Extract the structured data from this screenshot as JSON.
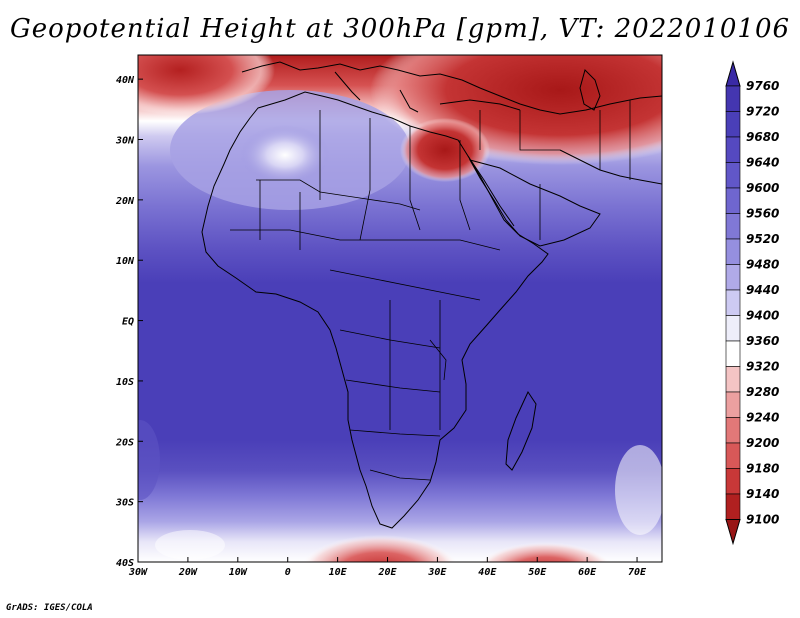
{
  "title": "Geopotential Height at 300hPa [gpm], VT: 2022010106",
  "credit": "GrADS: IGES/COLA",
  "map": {
    "lon_range": [
      -30,
      75
    ],
    "lat_range": [
      -40,
      44
    ],
    "x_ticks": [
      "30W",
      "20W",
      "10W",
      "0",
      "10E",
      "20E",
      "30E",
      "40E",
      "50E",
      "60E",
      "70E"
    ],
    "x_tick_values": [
      -30,
      -20,
      -10,
      0,
      10,
      20,
      30,
      40,
      50,
      60,
      70
    ],
    "y_ticks": [
      "40S",
      "30S",
      "20S",
      "10S",
      "EQ",
      "10N",
      "20N",
      "30N",
      "40N"
    ],
    "y_tick_values": [
      -40,
      -30,
      -20,
      -10,
      0,
      10,
      20,
      30,
      40
    ]
  },
  "colorbar": {
    "labels": [
      "9760",
      "9720",
      "9680",
      "9640",
      "9600",
      "9560",
      "9520",
      "9480",
      "9440",
      "9400",
      "9360",
      "9320",
      "9280",
      "9240",
      "9200",
      "9180",
      "9140",
      "9100"
    ],
    "colors": [
      "#3a2aa6",
      "#4436b0",
      "#4a3fb8",
      "#5549c0",
      "#6157c8",
      "#6f66cf",
      "#8078d6",
      "#958fdf",
      "#b0aae8",
      "#cdcaf2",
      "#eeeefa",
      "#ffffff",
      "#f4c4c4",
      "#eca0a0",
      "#e27878",
      "#d85858",
      "#c83838",
      "#b02020",
      "#981515"
    ]
  },
  "colors": {
    "deep_blue": "#4a3fb8",
    "deep_red": "#b01c1c",
    "border": "#000000"
  }
}
